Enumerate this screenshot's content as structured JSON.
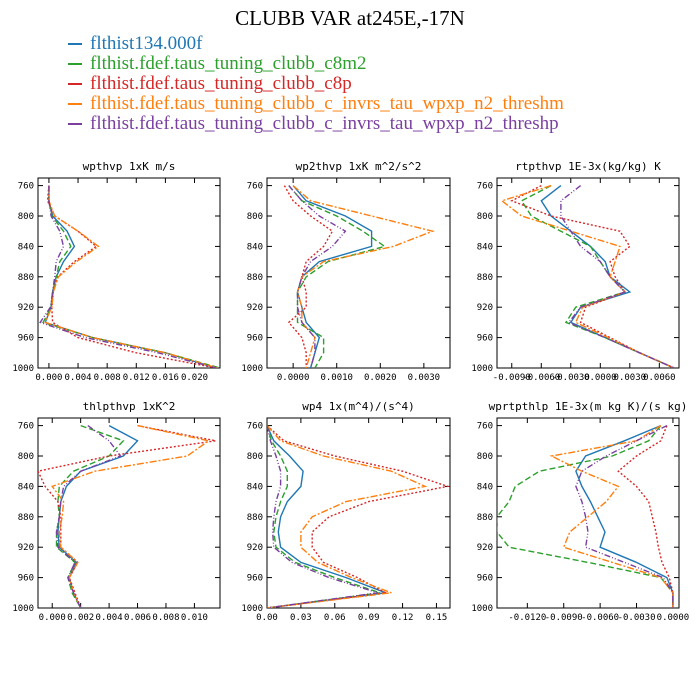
{
  "page": {
    "title": "CLUBB VAR at245E,-17N"
  },
  "legend": [
    {
      "name": "flthist134.000f",
      "color": "#1f77b4"
    },
    {
      "name": "flthist.fdef.taus_tuning_clubb_c8m2",
      "color": "#2ca02c"
    },
    {
      "name": "flthist.fdef.taus_tuning_clubb_c8p",
      "color": "#d62728"
    },
    {
      "name": "flthist.fdef.taus_tuning_clubb_c_invrs_tau_wpxp_n2_threshm",
      "color": "#ff7f0e"
    },
    {
      "name": "flthist.fdef.taus_tuning_clubb_c_invrs_tau_wpxp_n2_threshp",
      "color": "#7b3fa0"
    }
  ],
  "chart_data": [
    {
      "type": "line",
      "title": "wpthvp  1xK m/s",
      "y": [
        760,
        780,
        800,
        820,
        840,
        860,
        880,
        900,
        920,
        940,
        960,
        980,
        1000
      ],
      "ylim": [
        1000,
        750
      ],
      "yticks": [
        760,
        800,
        840,
        880,
        920,
        960,
        1000
      ],
      "xlim": [
        -0.0015,
        0.0235
      ],
      "xticks": [
        0.0,
        0.004,
        0.008,
        0.012,
        0.016,
        0.02
      ],
      "xticklabels": [
        "0.000",
        "0.004",
        "0.008",
        "0.012",
        "0.016",
        "0.020"
      ],
      "series": [
        {
          "values": [
            0.0,
            0.0,
            0.0005,
            0.0025,
            0.0035,
            0.002,
            0.001,
            0.0005,
            0.0003,
            -0.0005,
            0.006,
            0.016,
            0.023
          ]
        },
        {
          "values": [
            0.0,
            0.0,
            0.0004,
            0.002,
            0.003,
            0.0015,
            0.001,
            0.0005,
            0.0003,
            -0.0008,
            0.006,
            0.016,
            0.0235
          ]
        },
        {
          "values": [
            0.0,
            -0.0002,
            0.0008,
            0.004,
            0.0065,
            0.0035,
            0.0012,
            0.0006,
            0.0004,
            0.0005,
            0.004,
            0.012,
            0.023
          ]
        },
        {
          "values": [
            0.0,
            0.0,
            0.0008,
            0.004,
            0.0068,
            0.0038,
            0.0013,
            0.0006,
            0.0004,
            -0.0005,
            0.006,
            0.016,
            0.0232
          ]
        },
        {
          "values": [
            0.0,
            0.0,
            0.0003,
            0.0015,
            0.002,
            0.001,
            0.0008,
            0.0005,
            0.0002,
            -0.0012,
            0.005,
            0.015,
            0.023
          ]
        }
      ]
    },
    {
      "type": "line",
      "title": "wp2thvp  1xK m^2/s^2",
      "y": [
        760,
        780,
        800,
        820,
        840,
        860,
        880,
        900,
        920,
        940,
        960,
        980,
        1000
      ],
      "ylim": [
        1000,
        750
      ],
      "yticks": [
        760,
        800,
        840,
        880,
        920,
        960,
        1000
      ],
      "xlim": [
        -0.0006,
        0.0036
      ],
      "xticks": [
        0.0,
        0.001,
        0.002,
        0.003
      ],
      "xticklabels": [
        "0.0000",
        "0.0010",
        "0.0020",
        "0.0030"
      ],
      "series": [
        {
          "values": [
            0.0,
            0.0003,
            0.0012,
            0.0018,
            0.0018,
            0.0006,
            0.0002,
            0.0001,
            0.0002,
            0.0003,
            0.0006,
            0.0005,
            0.0004
          ]
        },
        {
          "values": [
            -0.0001,
            0.0002,
            0.001,
            0.0016,
            0.0021,
            0.0008,
            0.0003,
            0.0001,
            0.0001,
            0.0001,
            0.0007,
            0.0007,
            0.0005
          ]
        },
        {
          "values": [
            -0.0002,
            0.0,
            0.0004,
            0.0009,
            0.0007,
            0.0003,
            0.0002,
            0.0003,
            0.0003,
            -0.0001,
            0.0002,
            0.0003,
            0.0003
          ]
        },
        {
          "values": [
            0.0,
            0.0004,
            0.0018,
            0.0032,
            0.0023,
            0.0007,
            0.0002,
            0.0001,
            0.0002,
            0.0002,
            0.0005,
            0.0004,
            0.0003
          ]
        },
        {
          "values": [
            -0.0001,
            0.0002,
            0.0006,
            0.0012,
            0.0009,
            0.0004,
            0.0002,
            0.0001,
            0.0001,
            0.0002,
            0.0005,
            0.0005,
            0.0004
          ]
        }
      ]
    },
    {
      "type": "line",
      "title": "rtpthvp  1E-3x(kg/kg) K",
      "y": [
        760,
        780,
        800,
        820,
        840,
        860,
        880,
        900,
        920,
        940,
        960,
        980,
        1000
      ],
      "ylim": [
        1000,
        750
      ],
      "yticks": [
        760,
        800,
        840,
        880,
        920,
        960,
        1000
      ],
      "xlim": [
        -0.0105,
        0.008
      ],
      "xticks": [
        -0.009,
        -0.006,
        -0.003,
        0.0,
        0.003,
        0.006
      ],
      "xticklabels": [
        "-0.0090",
        "-0.0060",
        "-0.0030",
        "0.0000",
        "0.0030",
        "0.0060"
      ],
      "series": [
        {
          "values": [
            -0.004,
            -0.006,
            -0.005,
            -0.003,
            -0.001,
            0.0005,
            0.001,
            0.003,
            -0.002,
            -0.003,
            0.0005,
            0.004,
            0.0075
          ]
        },
        {
          "values": [
            -0.005,
            -0.008,
            -0.007,
            -0.004,
            -0.001,
            0.0,
            0.001,
            0.0025,
            -0.0025,
            -0.0035,
            0.0005,
            0.004,
            0.0075
          ]
        },
        {
          "values": [
            -0.006,
            -0.009,
            -0.005,
            0.002,
            0.003,
            0.001,
            0.0015,
            0.0025,
            -0.0015,
            -0.002,
            0.001,
            0.004,
            0.0075
          ]
        },
        {
          "values": [
            -0.005,
            -0.01,
            -0.008,
            -0.003,
            0.002,
            0.0015,
            0.001,
            0.0025,
            -0.0018,
            -0.0025,
            0.0008,
            0.004,
            0.0075
          ]
        },
        {
          "values": [
            -0.002,
            -0.004,
            -0.004,
            -0.003,
            -0.002,
            0.0,
            0.001,
            0.0025,
            -0.002,
            -0.0032,
            0.0005,
            0.004,
            0.0075
          ]
        }
      ]
    },
    {
      "type": "line",
      "title": "thlpthvp  1xK^2",
      "y": [
        760,
        780,
        800,
        820,
        840,
        860,
        880,
        900,
        920,
        940,
        960,
        980,
        1000
      ],
      "ylim": [
        1000,
        750
      ],
      "yticks": [
        760,
        800,
        840,
        880,
        920,
        960,
        1000
      ],
      "xlim": [
        -0.001,
        0.0118
      ],
      "xticks": [
        0.0,
        0.002,
        0.004,
        0.006,
        0.008,
        0.01
      ],
      "xticklabels": [
        "0.000",
        "0.002",
        "0.004",
        "0.006",
        "0.008",
        "0.010"
      ],
      "series": [
        {
          "values": [
            0.004,
            0.006,
            0.005,
            0.002,
            0.001,
            0.0006,
            0.0005,
            0.0004,
            0.0005,
            0.0017,
            0.0012,
            0.0015,
            0.002
          ]
        },
        {
          "values": [
            0.002,
            0.005,
            0.004,
            0.0015,
            0.0005,
            0.0004,
            0.0005,
            0.0003,
            0.0003,
            0.0016,
            0.0011,
            0.0014,
            0.002
          ]
        },
        {
          "values": [
            0.006,
            0.0115,
            0.004,
            -0.001,
            -0.0005,
            0.0004,
            0.0006,
            0.0006,
            0.0006,
            0.0018,
            0.0012,
            0.0016,
            0.002
          ]
        },
        {
          "values": [
            0.006,
            0.011,
            0.0095,
            0.003,
            0.0,
            0.0008,
            0.0007,
            0.0005,
            0.0006,
            0.0018,
            0.0012,
            0.0015,
            0.002
          ]
        },
        {
          "values": [
            0.0025,
            0.004,
            0.0048,
            0.002,
            0.0008,
            0.0006,
            0.0005,
            0.0003,
            0.0004,
            0.0016,
            0.0011,
            0.0015,
            0.002
          ]
        }
      ]
    },
    {
      "type": "line",
      "title": "wp4  1x(m^4)/(s^4)",
      "y": [
        760,
        780,
        800,
        820,
        840,
        860,
        880,
        900,
        920,
        940,
        960,
        980,
        1000
      ],
      "ylim": [
        1000,
        750
      ],
      "yticks": [
        760,
        800,
        840,
        880,
        920,
        960,
        1000
      ],
      "xlim": [
        0.0,
        0.162
      ],
      "xticks": [
        0.0,
        0.03,
        0.06,
        0.09,
        0.12,
        0.15
      ],
      "xticklabels": [
        "0.00",
        "0.03",
        "0.06",
        "0.09",
        "0.12",
        "0.15"
      ],
      "series": [
        {
          "values": [
            0.0,
            0.006,
            0.02,
            0.032,
            0.03,
            0.018,
            0.012,
            0.01,
            0.012,
            0.03,
            0.07,
            0.105,
            0.0
          ]
        },
        {
          "values": [
            0.0,
            0.004,
            0.012,
            0.018,
            0.018,
            0.012,
            0.008,
            0.006,
            0.008,
            0.025,
            0.06,
            0.1,
            0.0
          ]
        },
        {
          "values": [
            0.0,
            0.015,
            0.06,
            0.12,
            0.16,
            0.09,
            0.055,
            0.04,
            0.04,
            0.05,
            0.08,
            0.105,
            0.0
          ]
        },
        {
          "values": [
            0.0,
            0.012,
            0.05,
            0.11,
            0.14,
            0.07,
            0.04,
            0.03,
            0.03,
            0.045,
            0.075,
            0.11,
            0.0
          ]
        },
        {
          "values": [
            0.0,
            0.003,
            0.008,
            0.012,
            0.012,
            0.008,
            0.006,
            0.005,
            0.006,
            0.022,
            0.055,
            0.098,
            0.0
          ]
        }
      ]
    },
    {
      "type": "line",
      "title": "wprtpthlp  1E-3x(m kg K)/(s kg)",
      "y": [
        760,
        780,
        800,
        820,
        840,
        860,
        880,
        900,
        920,
        940,
        960,
        980,
        1000
      ],
      "ylim": [
        1000,
        750
      ],
      "yticks": [
        760,
        800,
        840,
        880,
        920,
        960,
        1000
      ],
      "xlim": [
        -0.0145,
        0.0005
      ],
      "xticks": [
        -0.012,
        -0.009,
        -0.006,
        -0.003,
        0.0
      ],
      "xticklabels": [
        "-0.0120",
        "-0.0090",
        "-0.0060",
        "-0.0030",
        "0.0000"
      ],
      "series": [
        {
          "values": [
            -0.001,
            -0.004,
            -0.0072,
            -0.008,
            -0.0075,
            -0.0068,
            -0.0062,
            -0.0056,
            -0.006,
            -0.003,
            -0.0005,
            0.0,
            0.0
          ]
        },
        {
          "values": [
            -0.001,
            -0.002,
            -0.005,
            -0.011,
            -0.013,
            -0.0135,
            -0.0145,
            -0.0145,
            -0.0135,
            -0.007,
            -0.001,
            0.0,
            0.0
          ]
        },
        {
          "values": [
            -0.0005,
            -0.001,
            -0.003,
            -0.0045,
            -0.003,
            -0.002,
            -0.0017,
            -0.0014,
            -0.0012,
            -0.0009,
            -0.0003,
            0.0,
            0.0
          ]
        },
        {
          "values": [
            -0.001,
            -0.003,
            -0.01,
            -0.0075,
            -0.0045,
            -0.0055,
            -0.007,
            -0.0085,
            -0.009,
            -0.005,
            -0.001,
            0.0,
            0.0
          ]
        },
        {
          "values": [
            -0.0005,
            -0.003,
            -0.0055,
            -0.0075,
            -0.008,
            -0.0075,
            -0.0072,
            -0.007,
            -0.0072,
            -0.004,
            -0.0008,
            0.0,
            0.0
          ]
        }
      ]
    }
  ]
}
